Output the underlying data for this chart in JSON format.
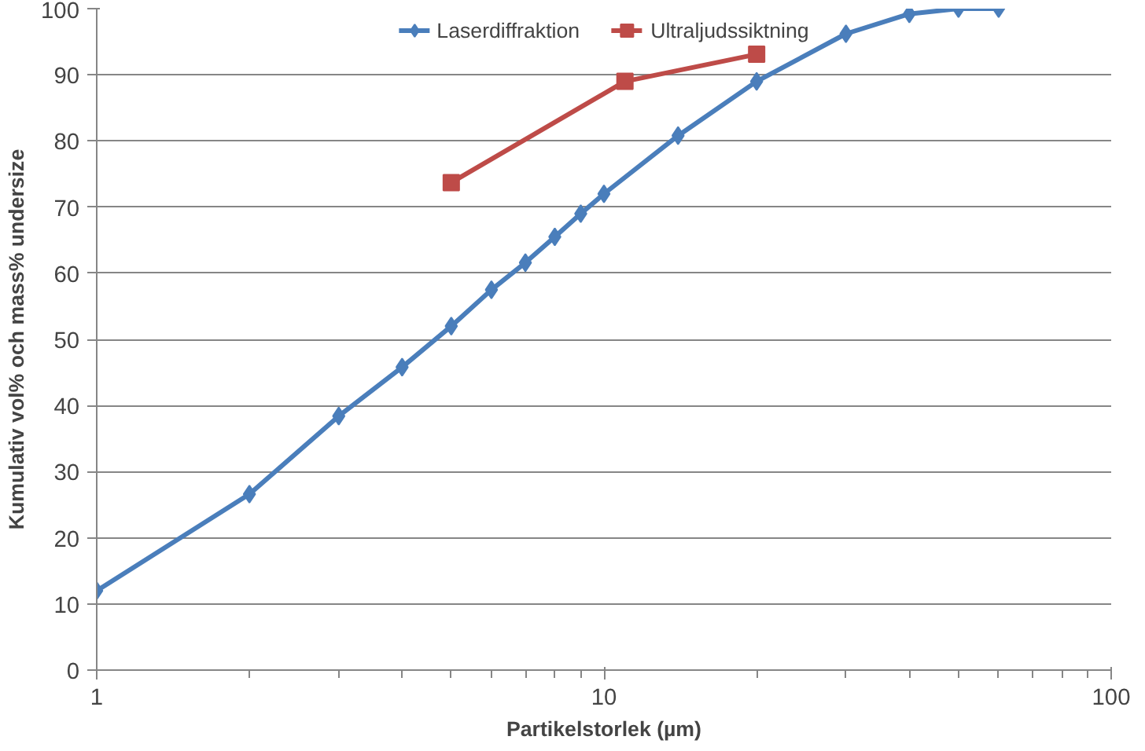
{
  "chart_data": {
    "type": "line",
    "xlabel": "Partikelstorlek (µm)",
    "ylabel": "Kumulativ vol% och mass% undersize",
    "log": "x",
    "xlim": [
      1,
      100
    ],
    "xticks": [
      1,
      10,
      100
    ],
    "ylim": [
      0,
      100
    ],
    "yticks": [
      0,
      10,
      20,
      30,
      40,
      50,
      60,
      70,
      80,
      90,
      100
    ],
    "grid": "y",
    "legend": "top",
    "line_style": "solid",
    "series": [
      {
        "name": "Laserdiffraktion",
        "color": "#4a7ebb",
        "marker": "diamond",
        "x": [
          1,
          2,
          3,
          4,
          5,
          6,
          7,
          8,
          9,
          10,
          14,
          20,
          30,
          40,
          50,
          60
        ],
        "values": [
          12,
          26.6,
          38.4,
          45.8,
          52,
          57.5,
          61.6,
          65.5,
          69,
          72,
          80.8,
          89,
          96.2,
          99.2,
          100,
          100
        ]
      },
      {
        "name": "Ultraljudssiktning",
        "color": "#be4b48",
        "marker": "square",
        "x": [
          5,
          11,
          20
        ],
        "values": [
          73.7,
          89,
          93.1
        ]
      }
    ]
  }
}
